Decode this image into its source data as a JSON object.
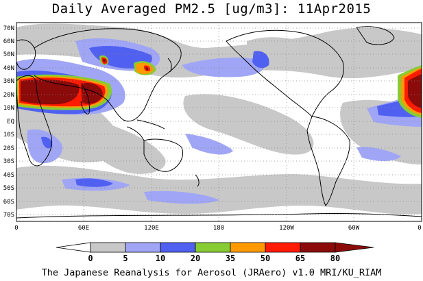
{
  "title": "Daily Averaged PM2.5 [ug/m3]: 11Apr2015",
  "footer": "The Japanese Reanalysis for Aerosol (JRAero) v1.0 MRI/KU_RIAM",
  "lat_labels": [
    "70N",
    "60N",
    "50N",
    "40N",
    "30N",
    "20N",
    "10N",
    "EQ",
    "10S",
    "20S",
    "30S",
    "40S",
    "50S",
    "60S",
    "70S"
  ],
  "lon_labels": [
    "0",
    "60E",
    "120E",
    "180",
    "120W",
    "60W",
    "0"
  ],
  "colorbar": {
    "labels": [
      "0",
      "5",
      "10",
      "20",
      "35",
      "50",
      "65",
      "80"
    ],
    "colors": [
      "#ffffff",
      "#c8c8c8",
      "#a0a6f5",
      "#5060f0",
      "#88cc33",
      "#ff9a00",
      "#ff1a00",
      "#8b0a0a"
    ]
  },
  "palette": {
    "background": "#ffffff",
    "light_gray": "#c8c8c8",
    "light_blue": "#a0a6f5",
    "blue": "#5060f0",
    "green": "#88cc33",
    "orange": "#ff9a00",
    "red": "#ff1a00",
    "dark_red": "#8b0a0a"
  }
}
